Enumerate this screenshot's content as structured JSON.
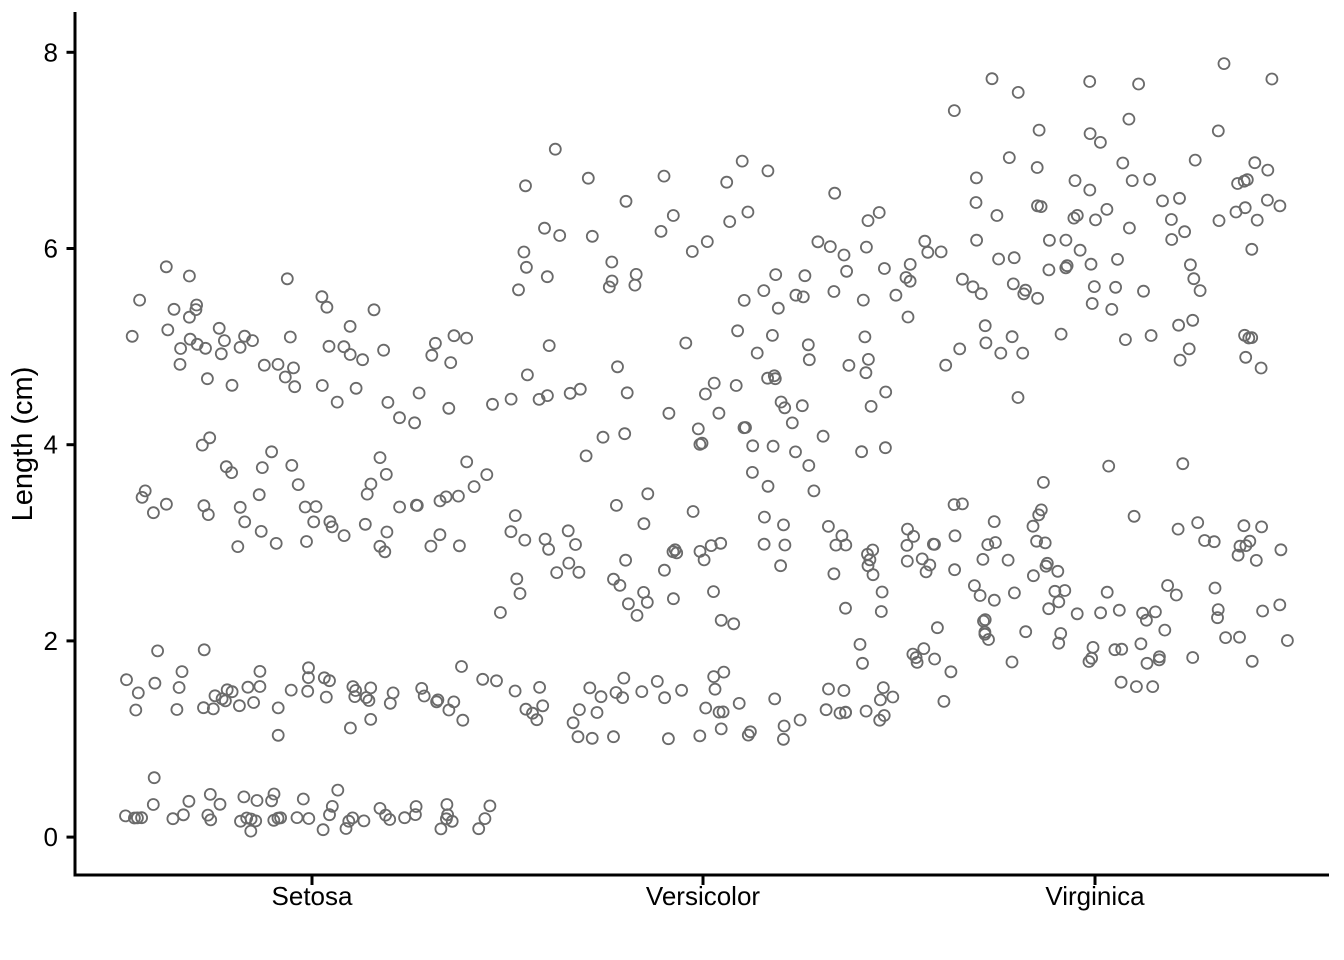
{
  "chart_data": {
    "type": "scatter",
    "plot_kind": "jittered-strip-plot",
    "title": "",
    "xlabel": "",
    "ylabel": "Length (cm)",
    "categories": [
      "Setosa",
      "Versicolor",
      "Virginica"
    ],
    "y_ticks": [
      0,
      2,
      4,
      6,
      8
    ],
    "ylim": [
      -0.4,
      8.4
    ],
    "grid": false,
    "legend": "none",
    "background_color": "#ffffff",
    "axis_color": "#000000",
    "point_style": {
      "shape": "open-circle",
      "stroke": "#6a6a6a",
      "radius": 5.5,
      "stroke_width": 1.8,
      "fill": "none"
    },
    "series": [
      {
        "name": "Setosa",
        "values": [
          5.1,
          4.9,
          4.7,
          4.6,
          5.0,
          5.4,
          4.6,
          5.0,
          4.4,
          4.9,
          5.4,
          4.8,
          4.8,
          4.3,
          5.8,
          5.7,
          5.4,
          5.1,
          5.7,
          5.1,
          5.4,
          5.1,
          4.6,
          5.1,
          4.8,
          5.0,
          5.0,
          5.2,
          5.2,
          4.7,
          4.8,
          5.4,
          5.2,
          5.5,
          4.9,
          5.0,
          5.5,
          4.9,
          4.4,
          5.1,
          5.0,
          4.5,
          4.4,
          5.0,
          5.1,
          4.8,
          5.1,
          4.6,
          5.3,
          5.0,
          3.5,
          3.0,
          3.2,
          3.1,
          3.6,
          3.9,
          3.4,
          3.4,
          2.9,
          3.1,
          3.7,
          3.4,
          3.0,
          3.0,
          4.0,
          4.4,
          3.9,
          3.5,
          3.8,
          3.8,
          3.4,
          3.7,
          3.6,
          3.3,
          3.4,
          3.0,
          3.4,
          3.5,
          3.4,
          3.2,
          3.1,
          3.4,
          4.1,
          4.2,
          3.1,
          3.2,
          3.5,
          3.6,
          3.0,
          3.4,
          3.5,
          2.3,
          3.2,
          3.5,
          3.8,
          3.0,
          3.8,
          3.2,
          3.7,
          3.3,
          1.4,
          1.4,
          1.3,
          1.5,
          1.4,
          1.7,
          1.4,
          1.5,
          1.4,
          1.5,
          1.5,
          1.6,
          1.4,
          1.1,
          1.2,
          1.5,
          1.3,
          1.4,
          1.7,
          1.5,
          1.7,
          1.5,
          1.0,
          1.7,
          1.9,
          1.6,
          1.6,
          1.5,
          1.4,
          1.6,
          1.6,
          1.5,
          1.5,
          1.4,
          1.5,
          1.2,
          1.3,
          1.4,
          1.3,
          1.5,
          1.3,
          1.3,
          1.3,
          1.6,
          1.9,
          1.4,
          1.6,
          1.4,
          1.5,
          1.4,
          0.2,
          0.2,
          0.2,
          0.2,
          0.2,
          0.4,
          0.3,
          0.2,
          0.2,
          0.1,
          0.2,
          0.2,
          0.1,
          0.1,
          0.2,
          0.4,
          0.4,
          0.3,
          0.3,
          0.3,
          0.2,
          0.4,
          0.2,
          0.5,
          0.2,
          0.2,
          0.4,
          0.2,
          0.2,
          0.2,
          0.2,
          0.4,
          0.1,
          0.2,
          0.2,
          0.2,
          0.2,
          0.1,
          0.2,
          0.2,
          0.3,
          0.3,
          0.2,
          0.6,
          0.4,
          0.3,
          0.2,
          0.2,
          0.2,
          0.2
        ]
      },
      {
        "name": "Versicolor",
        "values": [
          7.0,
          6.4,
          6.9,
          5.5,
          6.5,
          5.7,
          6.3,
          4.9,
          6.6,
          5.2,
          5.0,
          5.9,
          6.0,
          6.1,
          5.6,
          6.7,
          5.6,
          5.8,
          6.2,
          5.6,
          5.9,
          6.1,
          6.3,
          6.1,
          6.4,
          6.6,
          6.8,
          6.7,
          6.0,
          5.7,
          5.5,
          5.5,
          5.8,
          6.0,
          5.4,
          6.0,
          6.7,
          6.3,
          5.6,
          5.5,
          5.5,
          6.1,
          5.8,
          5.0,
          5.6,
          5.7,
          5.7,
          6.2,
          5.1,
          5.7,
          3.2,
          3.2,
          3.1,
          2.3,
          2.8,
          2.8,
          3.3,
          2.4,
          2.9,
          2.7,
          2.0,
          3.0,
          2.2,
          2.9,
          2.9,
          3.1,
          3.0,
          2.7,
          2.2,
          2.5,
          3.2,
          2.8,
          2.5,
          2.8,
          2.9,
          3.0,
          2.8,
          3.0,
          2.9,
          2.6,
          2.4,
          2.4,
          2.7,
          2.7,
          3.0,
          3.4,
          3.1,
          2.3,
          3.0,
          2.5,
          2.6,
          3.0,
          2.6,
          2.3,
          2.7,
          3.0,
          2.9,
          2.9,
          2.5,
          2.8,
          4.7,
          4.5,
          4.9,
          4.0,
          4.6,
          4.5,
          4.7,
          3.3,
          4.6,
          3.9,
          3.5,
          4.2,
          4.0,
          4.7,
          3.6,
          4.4,
          4.5,
          4.1,
          4.5,
          3.9,
          4.8,
          4.0,
          4.9,
          4.7,
          4.3,
          4.4,
          4.8,
          5.0,
          4.5,
          3.5,
          3.8,
          3.7,
          3.9,
          5.1,
          4.5,
          4.5,
          4.7,
          4.4,
          4.1,
          4.0,
          4.4,
          4.6,
          4.0,
          3.3,
          4.2,
          4.2,
          4.2,
          4.3,
          3.0,
          4.1,
          1.4,
          1.5,
          1.5,
          1.3,
          1.5,
          1.3,
          1.6,
          1.0,
          1.3,
          1.4,
          1.0,
          1.5,
          1.0,
          1.4,
          1.3,
          1.4,
          1.5,
          1.0,
          1.5,
          1.1,
          1.8,
          1.3,
          1.5,
          1.2,
          1.3,
          1.4,
          1.4,
          1.7,
          1.5,
          1.0,
          1.1,
          1.0,
          1.2,
          1.6,
          1.5,
          1.6,
          1.5,
          1.3,
          1.3,
          1.3,
          1.2,
          1.4,
          1.2,
          1.0,
          1.3,
          1.2,
          1.3,
          1.3,
          1.1,
          1.3
        ]
      },
      {
        "name": "Virginica",
        "values": [
          6.3,
          5.8,
          7.1,
          6.3,
          6.5,
          7.6,
          4.9,
          7.3,
          6.7,
          7.2,
          6.5,
          6.4,
          6.8,
          5.7,
          5.8,
          6.4,
          6.5,
          7.7,
          7.7,
          6.0,
          6.9,
          5.6,
          7.7,
          6.3,
          6.7,
          7.2,
          6.2,
          6.1,
          6.4,
          7.2,
          7.4,
          7.9,
          6.4,
          6.3,
          6.1,
          7.7,
          6.3,
          6.4,
          6.0,
          6.9,
          6.7,
          6.9,
          5.8,
          6.8,
          6.7,
          6.7,
          6.3,
          6.5,
          6.2,
          5.9,
          3.3,
          2.7,
          3.0,
          2.9,
          3.0,
          3.0,
          2.5,
          2.9,
          2.5,
          3.6,
          3.2,
          2.7,
          3.0,
          2.5,
          2.8,
          3.2,
          3.0,
          3.8,
          2.6,
          2.2,
          3.2,
          2.8,
          2.8,
          2.7,
          3.3,
          3.2,
          2.8,
          3.0,
          2.8,
          3.0,
          2.8,
          3.8,
          2.8,
          2.8,
          2.6,
          3.0,
          3.4,
          3.1,
          3.0,
          3.1,
          3.1,
          3.1,
          2.7,
          3.2,
          3.3,
          3.0,
          2.5,
          3.0,
          3.4,
          3.0,
          6.0,
          5.1,
          5.9,
          5.6,
          5.8,
          6.6,
          4.5,
          6.3,
          5.8,
          6.1,
          5.1,
          5.3,
          5.5,
          5.0,
          5.1,
          5.3,
          5.5,
          6.7,
          6.9,
          5.0,
          5.7,
          4.9,
          6.7,
          4.9,
          5.7,
          6.0,
          4.8,
          4.9,
          5.6,
          5.8,
          6.1,
          6.4,
          5.6,
          5.1,
          5.6,
          6.1,
          5.6,
          5.5,
          4.8,
          5.4,
          5.6,
          5.1,
          5.1,
          5.9,
          5.7,
          5.2,
          5.0,
          5.2,
          5.4,
          5.1,
          2.5,
          1.9,
          2.1,
          1.8,
          2.2,
          2.1,
          1.7,
          1.8,
          1.8,
          2.5,
          2.0,
          1.9,
          2.1,
          2.0,
          2.4,
          2.3,
          1.8,
          2.2,
          2.3,
          1.5,
          2.3,
          2.0,
          2.0,
          1.8,
          2.1,
          1.8,
          1.8,
          1.8,
          2.1,
          1.6,
          1.9,
          2.0,
          2.2,
          1.5,
          1.4,
          2.3,
          2.4,
          1.8,
          1.8,
          2.1,
          2.4,
          2.3,
          1.9,
          2.3,
          2.5,
          2.3,
          1.9,
          2.0,
          2.3,
          1.8
        ]
      }
    ]
  }
}
